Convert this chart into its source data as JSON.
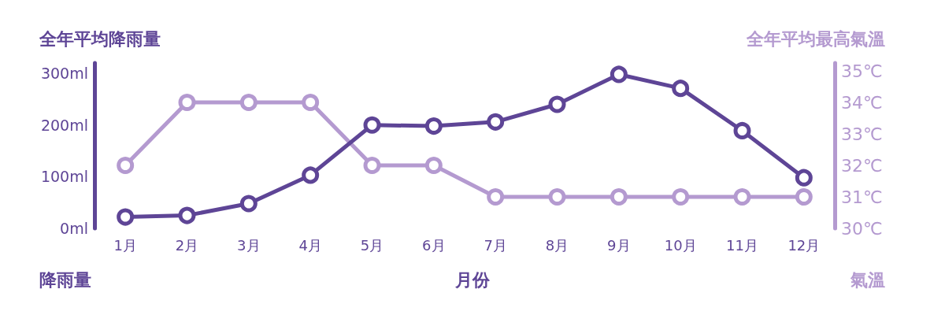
{
  "chart_data": {
    "type": "line",
    "xlabel": "月份",
    "ylabel": "全年平均降雨量",
    "y2label": "全年平均最高氣溫",
    "categories": [
      "1月",
      "2月",
      "3月",
      "4月",
      "5月",
      "6月",
      "7月",
      "8月",
      "9月",
      "10月",
      "11月",
      "12月"
    ],
    "series": [
      {
        "name": "降雨量",
        "color": "#5e4596",
        "values": [
          22,
          25,
          48,
          103,
          200,
          198,
          206,
          240,
          298,
          271,
          189,
          98
        ]
      },
      {
        "name": "氣溫",
        "color": "#b49ad0",
        "axis": "y2",
        "values": [
          32,
          34,
          34,
          34,
          32,
          32,
          31,
          31,
          31,
          31,
          31,
          31
        ]
      }
    ],
    "ylim": [
      0,
      320
    ],
    "yticks": [
      {
        "value": 0,
        "label": "0ml"
      },
      {
        "value": 100,
        "label": "100ml"
      },
      {
        "value": 200,
        "label": "200ml"
      },
      {
        "value": 300,
        "label": "300ml"
      }
    ],
    "y2lim": [
      30,
      35.25
    ],
    "y2ticks": [
      {
        "value": 30,
        "label": "30℃"
      },
      {
        "value": 31,
        "label": "31℃"
      },
      {
        "value": 32,
        "label": "32℃"
      },
      {
        "value": 33,
        "label": "33℃"
      },
      {
        "value": 34,
        "label": "34℃"
      },
      {
        "value": 35,
        "label": "35℃"
      }
    ],
    "grid": false,
    "marker": "circle",
    "line_style": "solid"
  }
}
